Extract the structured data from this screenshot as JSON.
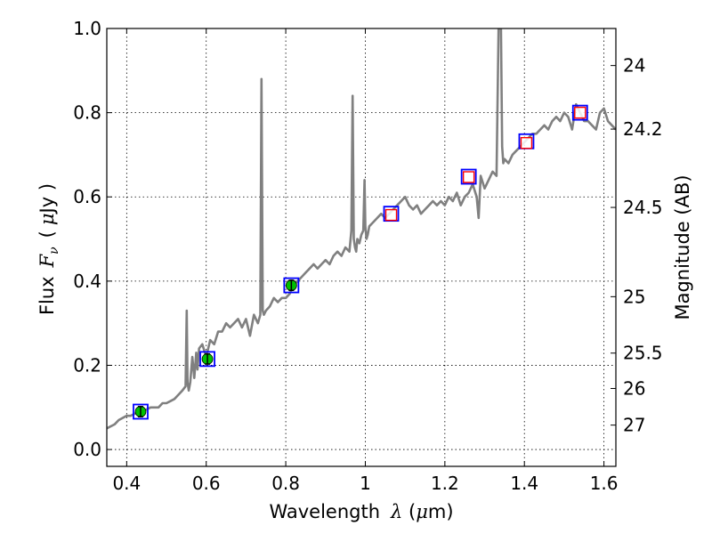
{
  "chart_data": {
    "type": "line",
    "title": "",
    "xlabel": "Wavelength",
    "xlabel_symbol": "λ",
    "xlabel_unit_open": " (",
    "xlabel_unit_mu": "μ",
    "xlabel_unit_close": "m)",
    "ylabel": "Flux",
    "ylabel_symbol": "F",
    "ylabel_subscript": "ν",
    "ylabel_unit_open": "(",
    "ylabel_unit_mu": "μ",
    "ylabel_unit_close": "Jy )",
    "y2label": "Magnitude (AB)",
    "xlim": [
      0.35,
      1.63
    ],
    "ylim": [
      -0.04,
      1.0
    ],
    "xticks": [
      0.4,
      0.6,
      0.8,
      1.0,
      1.2,
      1.4,
      1.6
    ],
    "xtick_labels": [
      "0.4",
      "0.6",
      "0.8",
      "1",
      "1.2",
      "1.4",
      "1.6"
    ],
    "yticks": [
      0.0,
      0.2,
      0.4,
      0.6,
      0.8,
      1.0
    ],
    "ytick_labels": [
      "0.0",
      "0.2",
      "0.4",
      "0.6",
      "0.8",
      "1.0"
    ],
    "y2ticks": [
      {
        "label": "24",
        "flux": 0.912
      },
      {
        "label": "24.2",
        "flux": 0.761
      },
      {
        "label": "24.5",
        "flux": 0.575
      },
      {
        "label": "25",
        "flux": 0.363
      },
      {
        "label": "25.5",
        "flux": 0.229
      },
      {
        "label": "26",
        "flux": 0.145
      },
      {
        "label": "27",
        "flux": 0.058
      }
    ],
    "grid": true,
    "spectrum": {
      "name": "model spectrum",
      "color": "#808080",
      "x": [
        0.35,
        0.37,
        0.38,
        0.4,
        0.41,
        0.42,
        0.43,
        0.44,
        0.45,
        0.46,
        0.47,
        0.48,
        0.49,
        0.5,
        0.51,
        0.52,
        0.53,
        0.54,
        0.548,
        0.551,
        0.553,
        0.556,
        0.56,
        0.565,
        0.57,
        0.575,
        0.578,
        0.582,
        0.59,
        0.6,
        0.61,
        0.62,
        0.63,
        0.64,
        0.65,
        0.66,
        0.67,
        0.68,
        0.69,
        0.7,
        0.71,
        0.72,
        0.73,
        0.736,
        0.739,
        0.742,
        0.745,
        0.75,
        0.76,
        0.77,
        0.78,
        0.79,
        0.8,
        0.81,
        0.82,
        0.83,
        0.84,
        0.85,
        0.86,
        0.87,
        0.88,
        0.89,
        0.9,
        0.91,
        0.92,
        0.93,
        0.94,
        0.95,
        0.96,
        0.965,
        0.968,
        0.971,
        0.974,
        0.977,
        0.98,
        0.985,
        0.99,
        0.995,
        0.998,
        1.0,
        1.003,
        1.006,
        1.01,
        1.02,
        1.03,
        1.04,
        1.05,
        1.06,
        1.07,
        1.08,
        1.09,
        1.1,
        1.11,
        1.12,
        1.13,
        1.14,
        1.15,
        1.16,
        1.17,
        1.18,
        1.19,
        1.2,
        1.21,
        1.22,
        1.23,
        1.24,
        1.25,
        1.26,
        1.27,
        1.28,
        1.285,
        1.29,
        1.3,
        1.31,
        1.32,
        1.33,
        1.335,
        1.338,
        1.341,
        1.344,
        1.347,
        1.35,
        1.36,
        1.37,
        1.38,
        1.39,
        1.4,
        1.41,
        1.42,
        1.43,
        1.44,
        1.45,
        1.46,
        1.47,
        1.48,
        1.49,
        1.5,
        1.51,
        1.52,
        1.53,
        1.54,
        1.55,
        1.56,
        1.57,
        1.58,
        1.59,
        1.6,
        1.61,
        1.62,
        1.63
      ],
      "y": [
        0.05,
        0.06,
        0.07,
        0.08,
        0.08,
        0.085,
        0.09,
        0.09,
        0.095,
        0.1,
        0.1,
        0.1,
        0.11,
        0.11,
        0.115,
        0.12,
        0.13,
        0.14,
        0.15,
        0.33,
        0.16,
        0.14,
        0.16,
        0.22,
        0.17,
        0.23,
        0.19,
        0.24,
        0.25,
        0.22,
        0.26,
        0.25,
        0.28,
        0.28,
        0.3,
        0.29,
        0.3,
        0.31,
        0.29,
        0.31,
        0.27,
        0.32,
        0.3,
        0.32,
        0.88,
        0.33,
        0.32,
        0.33,
        0.34,
        0.36,
        0.35,
        0.36,
        0.36,
        0.37,
        0.39,
        0.4,
        0.41,
        0.42,
        0.43,
        0.44,
        0.43,
        0.44,
        0.45,
        0.44,
        0.46,
        0.47,
        0.46,
        0.48,
        0.47,
        0.52,
        0.84,
        0.5,
        0.48,
        0.47,
        0.5,
        0.49,
        0.51,
        0.52,
        0.64,
        0.53,
        0.5,
        0.51,
        0.53,
        0.54,
        0.55,
        0.56,
        0.55,
        0.56,
        0.57,
        0.58,
        0.59,
        0.6,
        0.58,
        0.57,
        0.58,
        0.56,
        0.57,
        0.58,
        0.59,
        0.58,
        0.59,
        0.58,
        0.6,
        0.59,
        0.61,
        0.58,
        0.6,
        0.61,
        0.63,
        0.6,
        0.55,
        0.65,
        0.62,
        0.64,
        0.66,
        0.65,
        1.0,
        1.0,
        1.0,
        0.72,
        0.68,
        0.69,
        0.68,
        0.7,
        0.71,
        0.72,
        0.73,
        0.74,
        0.75,
        0.75,
        0.76,
        0.77,
        0.76,
        0.78,
        0.79,
        0.78,
        0.8,
        0.79,
        0.76,
        0.82,
        0.8,
        0.78,
        0.78,
        0.77,
        0.76,
        0.8,
        0.81,
        0.78,
        0.77,
        0.76
      ]
    },
    "photometry": {
      "name": "observed photometry",
      "marker": "filled circle with error bar",
      "color": "#00c000",
      "edge": "#000000",
      "x": [
        0.435,
        0.603,
        0.814
      ],
      "y": [
        0.09,
        0.215,
        0.39
      ],
      "yerr": [
        0.012,
        0.012,
        0.012
      ]
    },
    "model_bands": {
      "name": "model band fluxes",
      "marker": "blue square",
      "color": "#0000ff",
      "x": [
        0.435,
        0.603,
        0.814,
        1.065,
        1.26,
        1.405,
        1.54
      ],
      "y": [
        0.09,
        0.215,
        0.39,
        0.56,
        0.648,
        0.732,
        0.8
      ]
    },
    "ir_points": {
      "name": "infrared flux points",
      "marker": "open red square",
      "color": "#ff0000",
      "x": [
        1.065,
        1.26,
        1.405,
        1.54
      ],
      "y": [
        0.557,
        0.647,
        0.728,
        0.8
      ]
    }
  }
}
